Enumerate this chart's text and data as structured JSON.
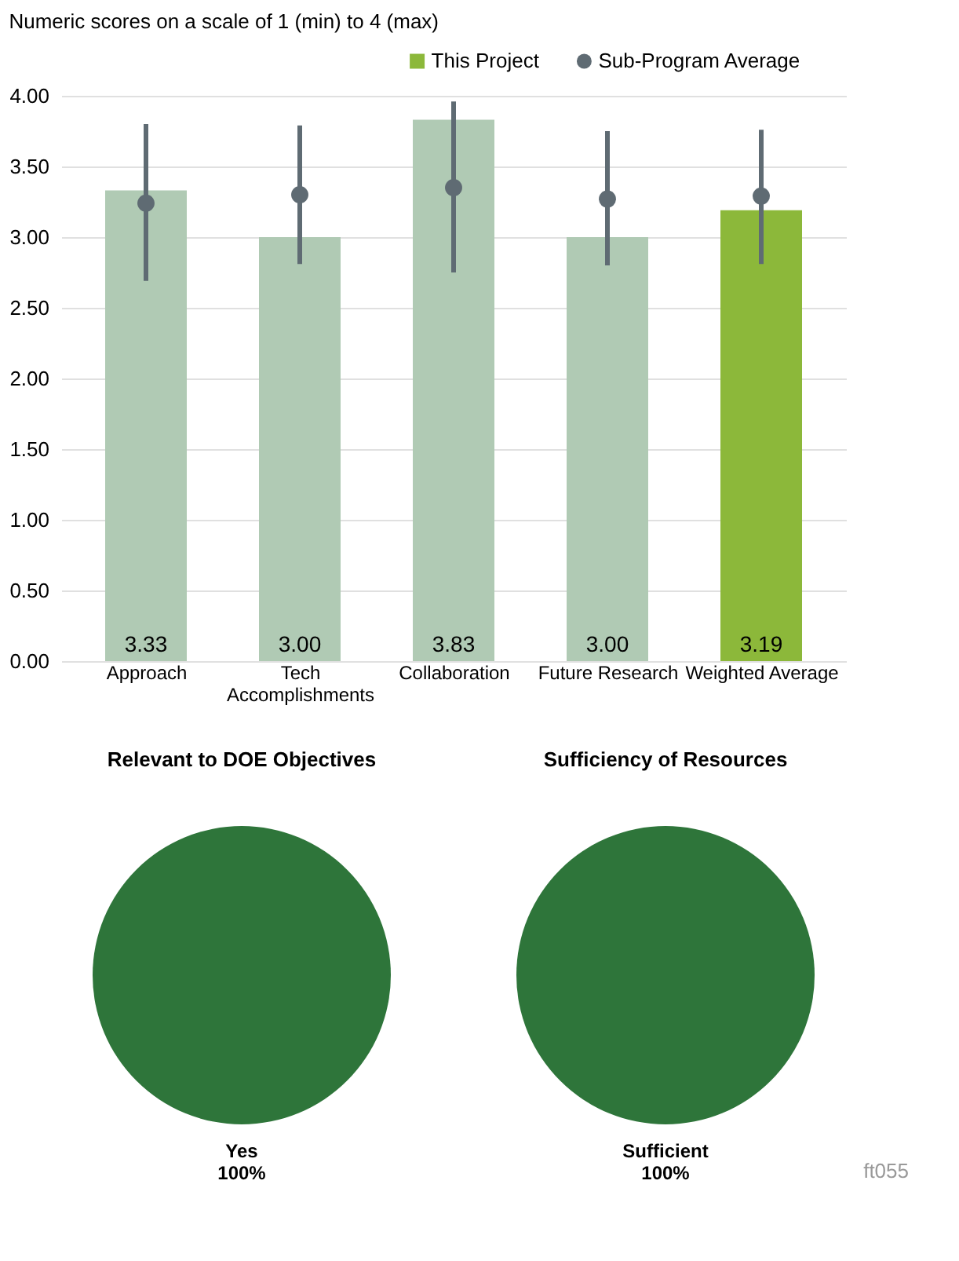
{
  "chart_data": [
    {
      "type": "bar",
      "title": "Numeric scores on a scale of 1 (min) to 4 (max)",
      "categories": [
        "Approach",
        "Tech Accomplishments",
        "Collaboration",
        "Future Research",
        "Weighted Average"
      ],
      "series": [
        {
          "name": "This Project",
          "color": "#8cb83a",
          "colors": [
            "#b0cab4",
            "#b0cab4",
            "#b0cab4",
            "#b0cab4",
            "#8cb83a"
          ],
          "values": [
            3.33,
            3.0,
            3.83,
            3.0,
            3.19
          ],
          "value_labels": [
            "3.33",
            "3.00",
            "3.83",
            "3.00",
            "3.19"
          ]
        },
        {
          "name": "Sub-Program Average",
          "type": "scatter",
          "color": "#5f6b73",
          "marker": "circle",
          "values": [
            3.24,
            3.3,
            3.35,
            3.27,
            3.29
          ],
          "errors": [
            [
              2.69,
              3.8
            ],
            [
              2.81,
              3.79
            ],
            [
              2.75,
              3.96
            ],
            [
              2.8,
              3.75
            ],
            [
              2.81,
              3.76
            ]
          ]
        }
      ],
      "ylim": [
        0,
        4
      ],
      "yticks": [
        {
          "value": 0,
          "label": "0.00"
        },
        {
          "value": 0.5,
          "label": "0.50"
        },
        {
          "value": 1,
          "label": "1.00"
        },
        {
          "value": 1.5,
          "label": "1.50"
        },
        {
          "value": 2,
          "label": "2.00"
        },
        {
          "value": 2.5,
          "label": "2.50"
        },
        {
          "value": 3,
          "label": "3.00"
        },
        {
          "value": 3.5,
          "label": "3.50"
        },
        {
          "value": 4,
          "label": "4.00"
        }
      ],
      "grid": "y",
      "legend": "top right"
    },
    {
      "type": "pie",
      "title": "Relevant to DOE Objectives",
      "categories": [
        "Yes"
      ],
      "values": [
        100
      ],
      "colors": [
        "#2e753a"
      ],
      "value_labels": [
        "100%"
      ]
    },
    {
      "type": "pie",
      "title": "Sufficiency of Resources",
      "categories": [
        "Sufficient"
      ],
      "values": [
        100
      ],
      "colors": [
        "#2e753a"
      ],
      "value_labels": [
        "100%"
      ],
      "annotations": [
        "ft055"
      ]
    }
  ]
}
